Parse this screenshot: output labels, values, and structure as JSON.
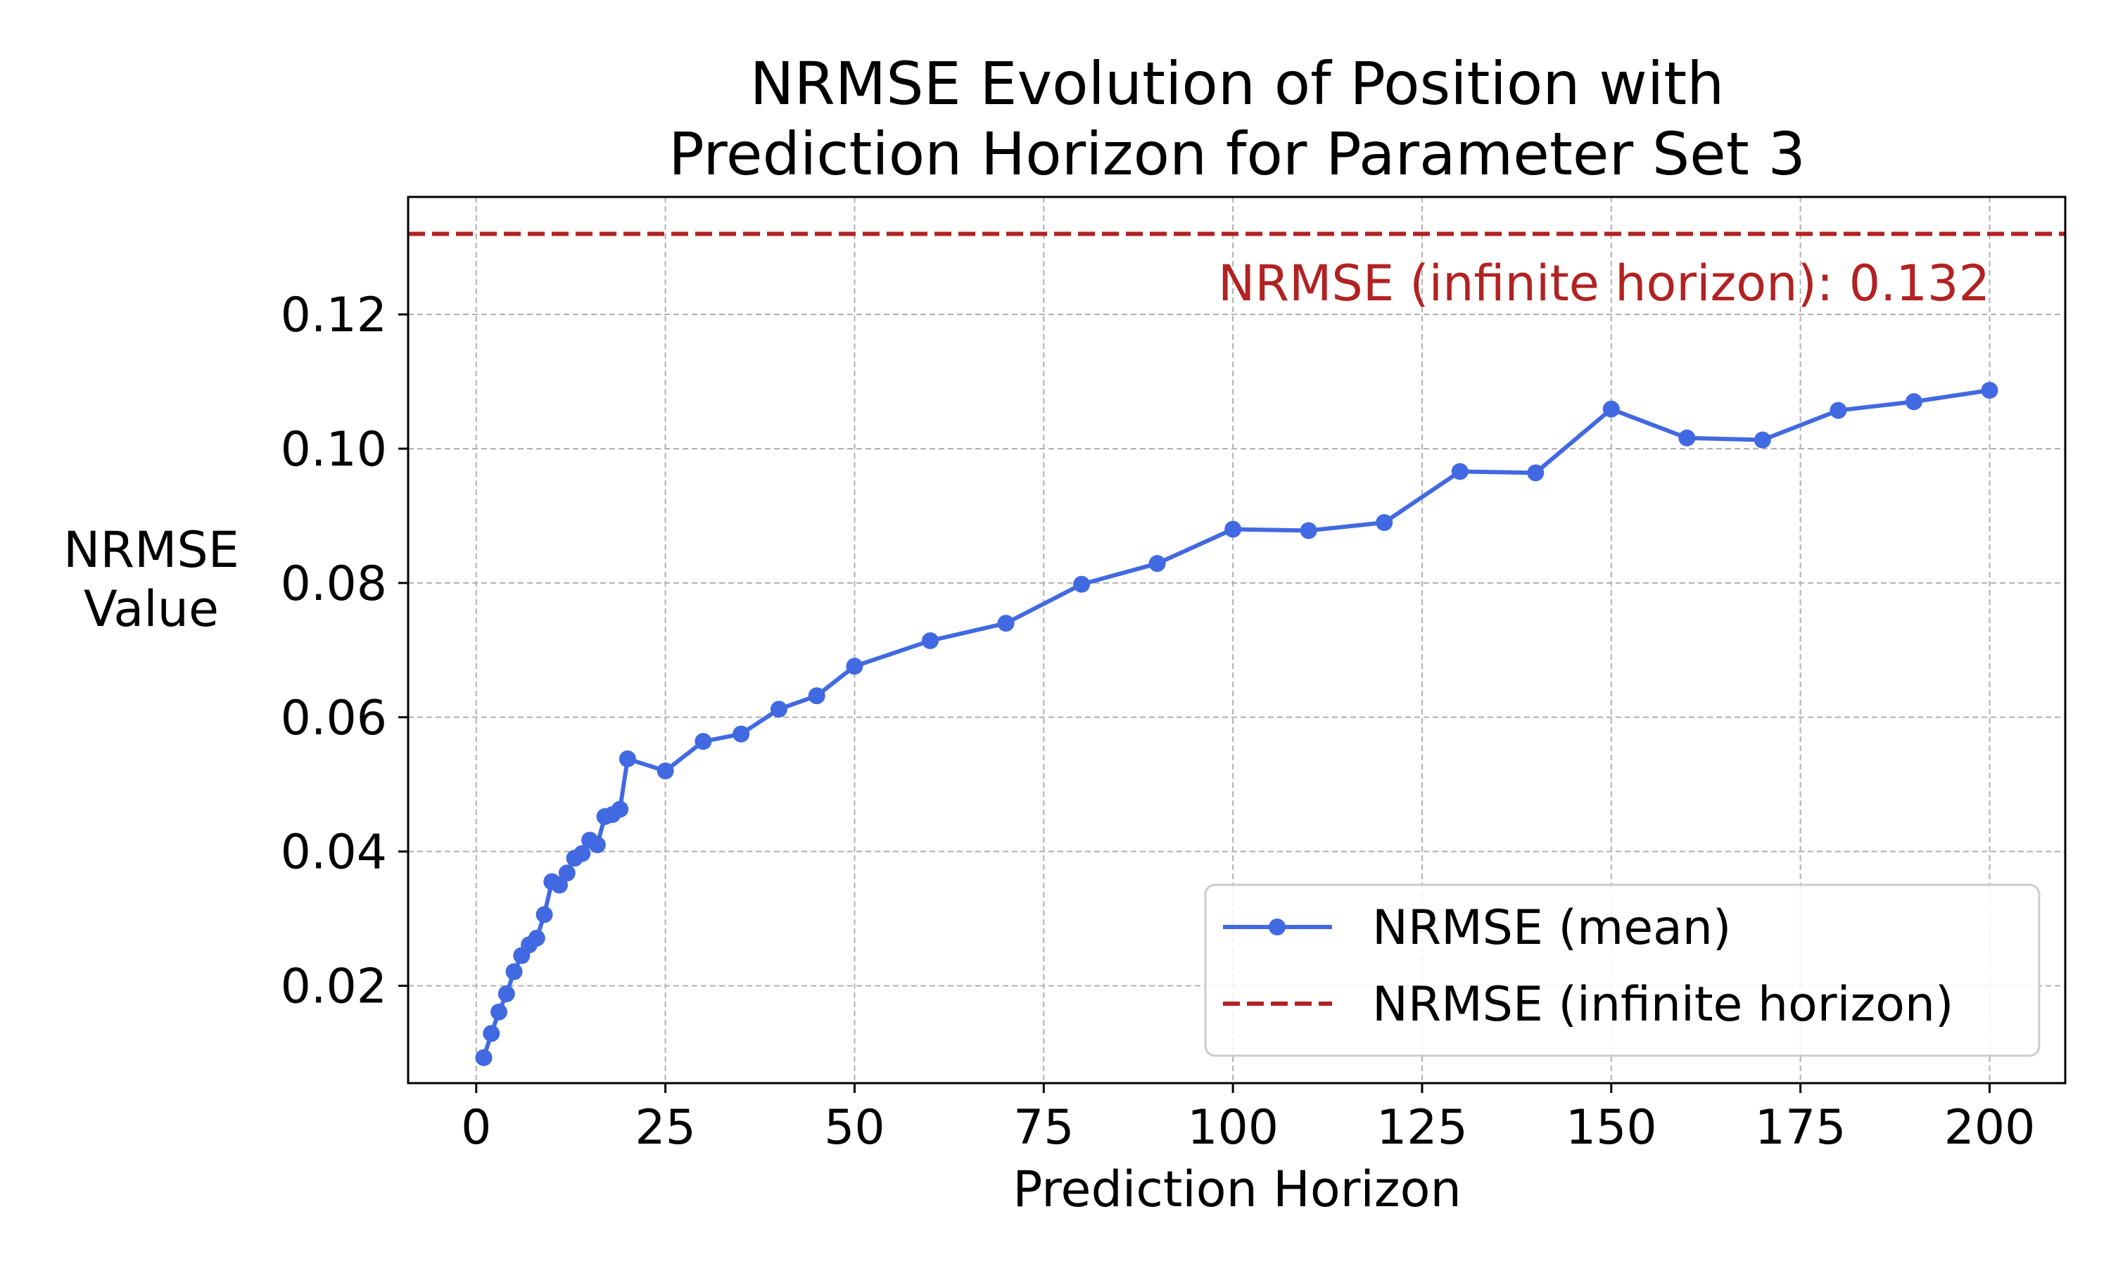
{
  "chart_data": {
    "type": "line",
    "title": [
      "NRMSE Evolution of Position with",
      "Prediction Horizon for Parameter Set 3"
    ],
    "xlabel": "Prediction Horizon",
    "ylabel": [
      "NRMSE",
      "Value"
    ],
    "xlim": [
      -9,
      210
    ],
    "ylim": [
      0.0055,
      0.1375
    ],
    "xticks": [
      0,
      25,
      50,
      75,
      100,
      125,
      150,
      175,
      200
    ],
    "xtick_labels": [
      "0",
      "25",
      "50",
      "75",
      "100",
      "125",
      "150",
      "175",
      "200"
    ],
    "yticks": [
      0.02,
      0.04,
      0.06,
      0.08,
      0.1,
      0.12
    ],
    "ytick_labels": [
      "0.02",
      "0.04",
      "0.06",
      "0.08",
      "0.10",
      "0.12"
    ],
    "grid": true,
    "legend_position": "lower-right",
    "series": [
      {
        "name": "NRMSE (mean)",
        "color": "#4169e1",
        "marker": "circle",
        "x": [
          1,
          2,
          3,
          4,
          5,
          6,
          7,
          8,
          9,
          10,
          11,
          12,
          13,
          14,
          15,
          16,
          17,
          18,
          19,
          20,
          25,
          30,
          35,
          40,
          45,
          50,
          60,
          70,
          80,
          90,
          100,
          110,
          120,
          130,
          140,
          150,
          160,
          170,
          180,
          190,
          200
        ],
        "y": [
          0.0093,
          0.0129,
          0.0161,
          0.0188,
          0.0221,
          0.0245,
          0.0261,
          0.0271,
          0.0306,
          0.0355,
          0.035,
          0.0368,
          0.039,
          0.0397,
          0.0417,
          0.041,
          0.0452,
          0.0455,
          0.0463,
          0.0538,
          0.052,
          0.0564,
          0.0575,
          0.0612,
          0.0632,
          0.0676,
          0.0714,
          0.074,
          0.0798,
          0.0829,
          0.088,
          0.0878,
          0.089,
          0.0966,
          0.0964,
          0.1059,
          0.1016,
          0.1013,
          0.1057,
          0.107,
          0.1087
        ]
      }
    ],
    "reference_line": {
      "name": "NRMSE (infinite horizon)",
      "value": 0.132,
      "color": "#b22222",
      "style": "dashed",
      "annotation": "NRMSE (infinite horizon): 0.132"
    }
  }
}
